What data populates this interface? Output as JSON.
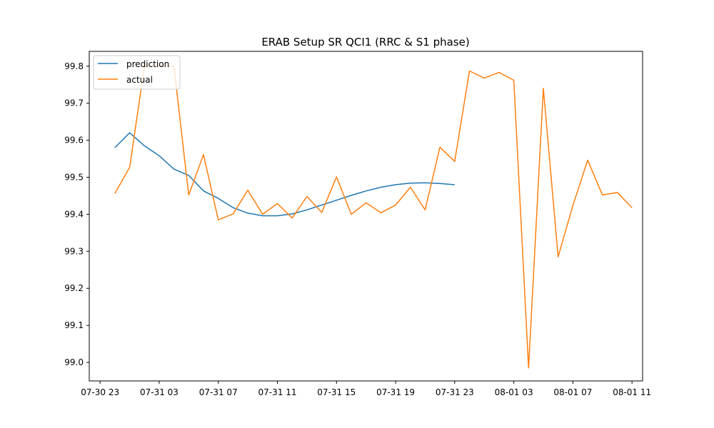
{
  "chart_data": {
    "type": "line",
    "title": "ERAB Setup SR QCI1 (RRC & S1 phase)",
    "xlabel": "",
    "ylabel": "",
    "ylim": [
      98.95,
      99.84
    ],
    "x_range": [
      "2023-07-30 22:16",
      "2023-08-01 11:43"
    ],
    "y_ticks": [
      99.0,
      99.1,
      99.2,
      99.3,
      99.4,
      99.5,
      99.6,
      99.7,
      99.8
    ],
    "y_tick_labels": [
      "99.0",
      "99.1",
      "99.2",
      "99.3",
      "99.4",
      "99.5",
      "99.6",
      "99.7",
      "99.8"
    ],
    "x_ticks": [
      "2023-07-30 23:00",
      "2023-07-31 03:00",
      "2023-07-31 07:00",
      "2023-07-31 11:00",
      "2023-07-31 15:00",
      "2023-07-31 19:00",
      "2023-07-31 23:00",
      "2023-08-01 03:00",
      "2023-08-01 07:00",
      "2023-08-01 11:00"
    ],
    "x_tick_labels": [
      "07-30 23",
      "07-31 03",
      "07-31 07",
      "07-31 11",
      "07-31 15",
      "07-31 19",
      "07-31 23",
      "08-01 03",
      "08-01 07",
      "08-01 11"
    ],
    "grid": false,
    "legend_position": "top-left",
    "series": [
      {
        "name": "prediction",
        "color": "#1f77b4",
        "x": [
          "2023-07-31 00:00",
          "2023-07-31 01:00",
          "2023-07-31 02:00",
          "2023-07-31 03:00",
          "2023-07-31 04:00",
          "2023-07-31 05:00",
          "2023-07-31 06:00",
          "2023-07-31 07:00",
          "2023-07-31 08:00",
          "2023-07-31 09:00",
          "2023-07-31 10:00",
          "2023-07-31 11:00",
          "2023-07-31 12:00",
          "2023-07-31 13:00",
          "2023-07-31 14:00",
          "2023-07-31 15:00",
          "2023-07-31 16:00",
          "2023-07-31 17:00",
          "2023-07-31 18:00",
          "2023-07-31 19:00",
          "2023-07-31 20:00",
          "2023-07-31 21:00",
          "2023-07-31 22:00",
          "2023-07-31 23:00"
        ],
        "values": [
          99.58,
          99.62,
          99.585,
          99.558,
          99.522,
          99.505,
          99.463,
          99.443,
          99.418,
          99.403,
          99.396,
          99.396,
          99.401,
          99.412,
          99.425,
          99.438,
          99.451,
          99.463,
          99.473,
          99.48,
          99.484,
          99.485,
          99.483,
          99.48
        ]
      },
      {
        "name": "actual",
        "color": "#ff7f0e",
        "x": [
          "2023-07-31 00:00",
          "2023-07-31 01:00",
          "2023-07-31 02:00",
          "2023-07-31 03:00",
          "2023-07-31 04:00",
          "2023-07-31 05:00",
          "2023-07-31 06:00",
          "2023-07-31 07:00",
          "2023-07-31 08:00",
          "2023-07-31 09:00",
          "2023-07-31 10:00",
          "2023-07-31 11:00",
          "2023-07-31 12:00",
          "2023-07-31 13:00",
          "2023-07-31 14:00",
          "2023-07-31 15:00",
          "2023-07-31 16:00",
          "2023-07-31 17:00",
          "2023-07-31 18:00",
          "2023-07-31 19:00",
          "2023-07-31 20:00",
          "2023-07-31 21:00",
          "2023-07-31 22:00",
          "2023-07-31 23:00",
          "2023-08-01 00:00",
          "2023-08-01 01:00",
          "2023-08-01 02:00",
          "2023-08-01 03:00",
          "2023-08-01 04:00",
          "2023-08-01 05:00",
          "2023-08-01 06:00",
          "2023-08-01 07:00",
          "2023-08-01 08:00",
          "2023-08-01 09:00",
          "2023-08-01 10:00",
          "2023-08-01 11:00"
        ],
        "values": [
          99.456,
          99.527,
          99.8,
          99.8,
          99.8,
          99.452,
          99.561,
          99.385,
          99.401,
          99.465,
          99.4,
          99.429,
          99.39,
          99.448,
          99.405,
          99.501,
          99.4,
          99.431,
          99.404,
          99.425,
          99.473,
          99.412,
          99.581,
          99.543,
          99.787,
          99.768,
          99.783,
          99.762,
          98.985,
          99.74,
          99.285,
          99.424,
          99.546,
          99.452,
          99.459,
          99.418
        ]
      }
    ]
  }
}
